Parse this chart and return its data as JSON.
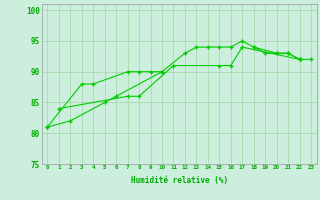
{
  "bg_color": "#cceedd",
  "line_color": "#00cc00",
  "grid_color": "#99cc99",
  "label_color": "#00aa00",
  "xlabel": "Humidité relative (%)",
  "ylim": [
    75,
    101
  ],
  "xlim": [
    -0.5,
    23.5
  ],
  "yticks": [
    75,
    80,
    85,
    90,
    95,
    100
  ],
  "series": [
    {
      "x": [
        0,
        2,
        5,
        6,
        10,
        12,
        13,
        14,
        15,
        16,
        17,
        18,
        20,
        21,
        22
      ],
      "y": [
        81,
        82,
        85,
        86,
        90,
        93,
        94,
        94,
        94,
        94,
        95,
        94,
        93,
        93,
        92
      ]
    },
    {
      "x": [
        0,
        3,
        4,
        7,
        8,
        9,
        10
      ],
      "y": [
        81,
        88,
        88,
        90,
        90,
        90,
        90
      ]
    },
    {
      "x": [
        1,
        7,
        8,
        11,
        15,
        16,
        17,
        22
      ],
      "y": [
        84,
        86,
        86,
        91,
        91,
        91,
        94,
        92
      ]
    },
    {
      "x": [
        18,
        19,
        20,
        21,
        22,
        23
      ],
      "y": [
        94,
        93,
        93,
        93,
        92,
        92
      ]
    }
  ],
  "marker": "+",
  "markersize": 3.5,
  "linewidth": 0.8
}
